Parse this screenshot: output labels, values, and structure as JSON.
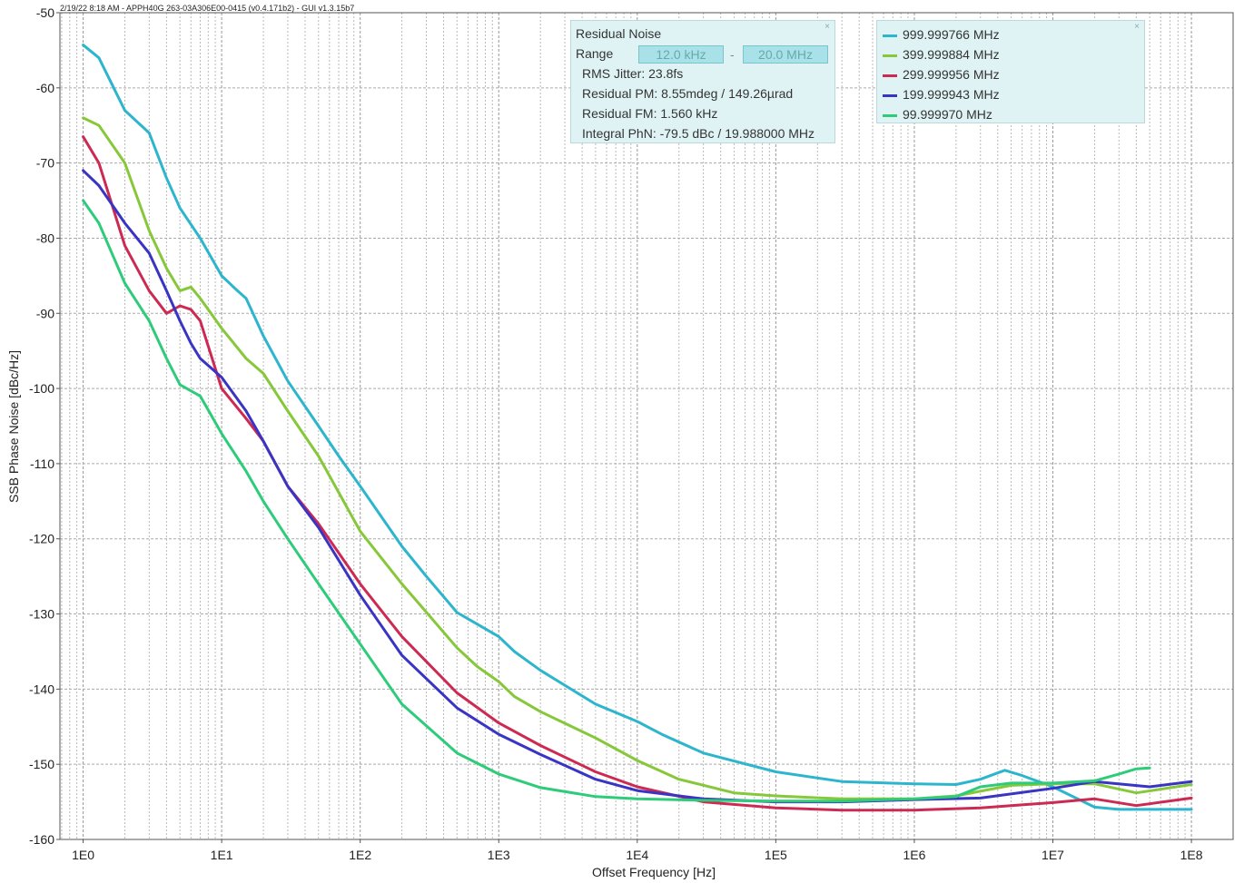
{
  "window_title": "2/19/22 8:18 AM - APPH40G 263-03A306E00-0415 (v0.4.171b2) - GUI v1.3.15b7",
  "residual_panel": {
    "title": "Residual Noise",
    "range_label": "Range",
    "range_start": "12.0 kHz",
    "range_sep": "-",
    "range_end": "20.0 MHz",
    "rms_jitter": "RMS Jitter: 23.8fs",
    "residual_pm": "Residual PM: 8.55mdeg / 149.26µrad",
    "residual_fm": "Residual FM: 1.560 kHz",
    "integral_phn": "Integral PhN: -79.5 dBc / 19.988000 MHz",
    "close_glyph": "×"
  },
  "legend": {
    "close_glyph": "×",
    "items": [
      {
        "label": "999.999766 MHz",
        "color": "#2cb5cc"
      },
      {
        "label": "399.999884 MHz",
        "color": "#86c83a"
      },
      {
        "label": "299.999956 MHz",
        "color": "#cc2a52"
      },
      {
        "label": "199.999943 MHz",
        "color": "#3a34c4"
      },
      {
        "label": "99.999970 MHz",
        "color": "#2ecc7a"
      }
    ]
  },
  "chart_data": {
    "type": "line",
    "xlabel": "Offset Frequency [Hz]",
    "ylabel": "SSB Phase Noise [dBc/Hz]",
    "x_scale": "log",
    "xlim": [
      0.68,
      200000000.0
    ],
    "ylim": [
      -160,
      -50
    ],
    "x_ticks": [
      1,
      10,
      100,
      1000,
      10000,
      100000,
      1000000,
      10000000,
      100000000
    ],
    "x_tick_labels": [
      "1E0",
      "1E1",
      "1E2",
      "1E3",
      "1E4",
      "1E5",
      "1E6",
      "1E7",
      "1E8"
    ],
    "y_ticks": [
      -50,
      -60,
      -70,
      -80,
      -90,
      -100,
      -110,
      -120,
      -130,
      -140,
      -150,
      -160
    ],
    "y_tick_labels": [
      "-50",
      "-60",
      "-70",
      "-80",
      "-90",
      "-100",
      "-110",
      "-120",
      "-130",
      "-140",
      "-150",
      "-160"
    ],
    "grid": true,
    "legend_position": "top-right",
    "series": [
      {
        "name": "999.999766 MHz",
        "color": "#2cb5cc",
        "x": [
          1,
          1.3,
          2,
          3,
          4,
          5,
          7,
          10,
          13,
          15,
          20,
          30,
          50,
          70,
          100,
          200,
          300,
          500,
          1000,
          1300,
          2000,
          5000,
          10000,
          15000,
          30000,
          100000,
          300000,
          1000000,
          2000000,
          3000000,
          4500000,
          6000000,
          10000000,
          20000000,
          30000000,
          50000000,
          100000000
        ],
        "y": [
          -54.3,
          -56,
          -63,
          -66,
          -72,
          -76,
          -80,
          -85,
          -87,
          -88,
          -93,
          -99,
          -105,
          -109,
          -113,
          -121,
          -125,
          -129.8,
          -133,
          -135,
          -137.5,
          -142,
          -144.3,
          -146,
          -148.5,
          -151,
          -152.3,
          -152.6,
          -152.7,
          -152,
          -150.8,
          -151.5,
          -153,
          -155.7,
          -156,
          -156,
          -156
        ]
      },
      {
        "name": "399.999884 MHz",
        "color": "#86c83a",
        "x": [
          1,
          1.3,
          2,
          3,
          4,
          5,
          6,
          7,
          10,
          15,
          20,
          30,
          50,
          100,
          200,
          500,
          700,
          1000,
          1300,
          2000,
          5000,
          10000,
          20000,
          50000,
          100000,
          300000,
          1000000,
          2000000,
          5000000,
          10000000,
          20000000,
          40000000,
          100000000
        ],
        "y": [
          -64,
          -65,
          -70,
          -79,
          -84,
          -87,
          -86.5,
          -88,
          -92,
          -96,
          -98,
          -103,
          -109,
          -119,
          -126,
          -134.5,
          -137,
          -139,
          -141,
          -143,
          -146.5,
          -149.5,
          -152,
          -153.8,
          -154.2,
          -154.6,
          -154.6,
          -154.2,
          -152.8,
          -152.6,
          -152.6,
          -153.8,
          -152.7
        ]
      },
      {
        "name": "299.999956 MHz",
        "color": "#cc2a52",
        "x": [
          1,
          1.3,
          2,
          3,
          4,
          5,
          6,
          7,
          10,
          15,
          20,
          30,
          50,
          100,
          200,
          500,
          1000,
          2000,
          5000,
          10000,
          30000,
          100000,
          300000,
          1000000,
          3000000,
          10000000,
          20000000,
          40000000,
          100000000
        ],
        "y": [
          -66.5,
          -70,
          -81,
          -87,
          -90,
          -89,
          -89.5,
          -91,
          -100,
          -104,
          -107,
          -113,
          -118,
          -126,
          -133,
          -140.5,
          -144.5,
          -147.5,
          -151,
          -153,
          -155,
          -155.8,
          -156.1,
          -156.1,
          -155.8,
          -155.1,
          -154.6,
          -155.5,
          -154.5
        ]
      },
      {
        "name": "199.999943 MHz",
        "color": "#3a34c4",
        "x": [
          1,
          1.3,
          2,
          3,
          4,
          5,
          6,
          7,
          10,
          15,
          20,
          30,
          50,
          100,
          200,
          500,
          1000,
          2000,
          5000,
          10000,
          30000,
          100000,
          300000,
          1000000,
          3000000,
          10000000,
          20000000,
          50000000,
          100000000
        ],
        "y": [
          -71,
          -73,
          -78,
          -82,
          -87,
          -91,
          -94,
          -96,
          -98.5,
          -103,
          -107,
          -113,
          -118.5,
          -127.5,
          -135.5,
          -142.5,
          -146,
          -148.7,
          -152,
          -153.5,
          -154.6,
          -155,
          -155,
          -154.7,
          -154.5,
          -153.2,
          -152.3,
          -153,
          -152.3
        ]
      },
      {
        "name": "99.999970 MHz",
        "color": "#2ecc7a",
        "x": [
          1,
          1.3,
          2,
          3,
          4,
          5,
          7,
          10,
          15,
          20,
          30,
          50,
          100,
          200,
          500,
          1000,
          2000,
          5000,
          10000,
          30000,
          100000,
          300000,
          1000000,
          2000000,
          3000000,
          5000000,
          10000000,
          20000000,
          30000000,
          40000000,
          50000000
        ],
        "y": [
          -75,
          -78,
          -86,
          -91,
          -96,
          -99.5,
          -101,
          -106,
          -111,
          -115,
          -120,
          -126,
          -134,
          -142,
          -148.5,
          -151.3,
          -153.1,
          -154.3,
          -154.6,
          -154.8,
          -154.9,
          -154.9,
          -154.6,
          -154.3,
          -153,
          -152.5,
          -152.5,
          -152.2,
          -151.3,
          -150.6,
          -150.5
        ]
      }
    ]
  }
}
